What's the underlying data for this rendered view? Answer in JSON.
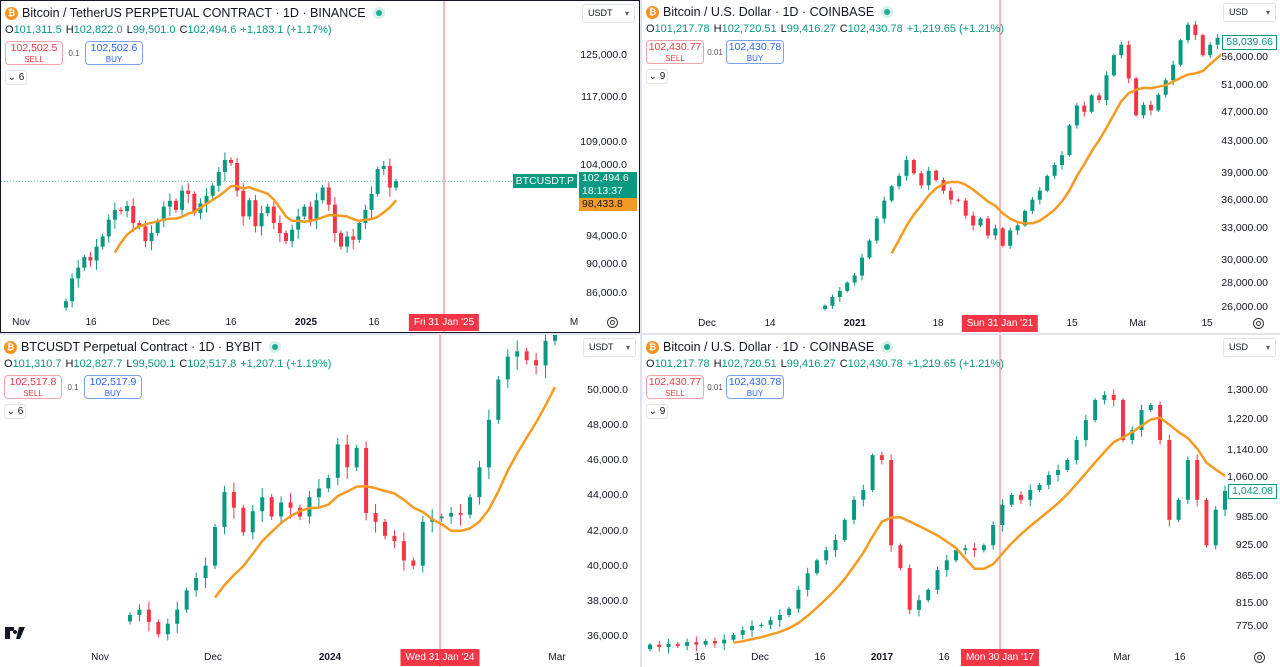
{
  "ohlc_labels": {
    "o": "O",
    "h": "H",
    "l": "L",
    "c": "C"
  },
  "colors": {
    "up": "#089981",
    "down": "#f23645",
    "moving_average": "#f59a23",
    "crosshair": "#f23645"
  },
  "panels": [
    {
      "title": "Bitcoin / TetherUS PERPETUAL CONTRACT · 1D · BINANCE",
      "coin_icon": "bitcoin-icon",
      "ohlc": {
        "o": "101,311.5",
        "h": "102,822.0",
        "l": "99,501.0",
        "c": "102,494.6",
        "change": "+1,183.1 (+1.17%)"
      },
      "sell": {
        "price": "102,502.5",
        "label": "SELL"
      },
      "spread": "0.1",
      "buy": {
        "price": "102,502.6",
        "label": "BUY"
      },
      "indicators_count": "6",
      "currency": "USDT",
      "crosshair_date": "Fri 31 Jan '25",
      "tags": {
        "symbol": "BTCUSDT.P",
        "price": "102,494.6",
        "countdown": "18:13:37",
        "ma": "98,433.8"
      }
    },
    {
      "title": "Bitcoin / U.S. Dollar · 1D · COINBASE",
      "coin_icon": "bitcoin-icon",
      "ohlc": {
        "o": "101,217.78",
        "h": "102,720.51",
        "l": "99,416.27",
        "c": "102,430.78",
        "change": "+1,219.65 (+1.21%)"
      },
      "sell": {
        "price": "102,430.77",
        "label": "SELL"
      },
      "spread": "0.01",
      "buy": {
        "price": "102,430.78",
        "label": "BUY"
      },
      "indicators_count": "9",
      "currency": "USD",
      "crosshair_date": "Sun 31 Jan '21",
      "tags": {
        "price": "58,039.66"
      }
    },
    {
      "title": "BTCUSDT Perpetual Contract · 1D · BYBIT",
      "coin_icon": "bitcoin-icon",
      "ohlc": {
        "o": "101,310.7",
        "h": "102,827.7",
        "l": "99,500.1",
        "c": "102,517.8",
        "change": "+1,207.1 (+1.19%)"
      },
      "sell": {
        "price": "102,517.8",
        "label": "SELL"
      },
      "spread": "0.1",
      "buy": {
        "price": "102,517.9",
        "label": "BUY"
      },
      "indicators_count": "6",
      "currency": "USDT",
      "crosshair_date": "Wed 31 Jan '24",
      "tags": {}
    },
    {
      "title": "Bitcoin / U.S. Dollar · 1D · COINBASE",
      "coin_icon": "bitcoin-icon",
      "ohlc": {
        "o": "101,217.78",
        "h": "102,720.51",
        "l": "99,416.27",
        "c": "102,430.78",
        "change": "+1,219.65 (+1.21%)"
      },
      "sell": {
        "price": "102,430.77",
        "label": "SELL"
      },
      "spread": "0.01",
      "buy": {
        "price": "102,430.78",
        "label": "BUY"
      },
      "indicators_count": "9",
      "currency": "USD",
      "crosshair_date": "Mon 30 Jan '17",
      "tags": {
        "price": "1,042.08"
      }
    }
  ],
  "chart_data": [
    {
      "type": "candlestick",
      "scale": "log",
      "moving_average": true,
      "closes": [
        84900,
        88000,
        89500,
        91000,
        90500,
        92500,
        94000,
        96500,
        98000,
        97800,
        98600,
        96000,
        95500,
        93300,
        94500,
        96300,
        98500,
        99400,
        98000,
        101000,
        100500,
        97500,
        99000,
        100200,
        101800,
        104000,
        106000,
        105500,
        101000,
        97000,
        99500,
        95500,
        97500,
        98500,
        96000,
        94500,
        93300,
        95000,
        97000,
        98500,
        96500,
        99500,
        101500,
        98800,
        94500,
        92500,
        94000,
        93500,
        96000,
        98000,
        100500,
        104500,
        105000,
        101500,
        102495
      ],
      "y_ticks": [
        "125,000.0",
        "117,000.0",
        "109,000.0",
        "104,000.0",
        "94,000.0",
        "90,000.0",
        "86,000.0"
      ],
      "x_ticks": [
        "Nov",
        "16",
        "Dec",
        "16",
        "2025",
        "16",
        "M"
      ]
    },
    {
      "type": "candlestick",
      "scale": "log",
      "moving_average": true,
      "closes": [
        26100,
        26800,
        27300,
        28000,
        28600,
        30200,
        31800,
        34000,
        35900,
        37500,
        38700,
        40600,
        39000,
        37600,
        39300,
        38200,
        37000,
        36000,
        35900,
        34300,
        33300,
        34000,
        32300,
        33000,
        31300,
        32800,
        33300,
        34800,
        36000,
        37000,
        38700,
        40000,
        41200,
        45100,
        47900,
        47000,
        49400,
        48700,
        52500,
        55800,
        57600,
        52000,
        46500,
        48000,
        47200,
        49500,
        51700,
        54200,
        58400,
        61200,
        59300,
        55800,
        57600,
        58800,
        58040
      ],
      "y_ticks": [
        "56,000.00",
        "51,000.00",
        "47,000.00",
        "43,000.00",
        "39,000.00",
        "36,000.00",
        "33,000.00",
        "30,000.00",
        "28,000.00",
        "26,000.00"
      ],
      "x_ticks": [
        "Dec",
        "14",
        "2021",
        "18",
        "15",
        "Mar",
        "15"
      ]
    },
    {
      "type": "candlestick",
      "scale": "linear",
      "moving_average": true,
      "closes": [
        37200,
        37500,
        36800,
        36100,
        36700,
        37500,
        38600,
        39300,
        40000,
        42200,
        44200,
        43300,
        41900,
        43100,
        43900,
        42800,
        43600,
        43300,
        42800,
        43900,
        44400,
        45000,
        46900,
        45600,
        46700,
        43000,
        42500,
        41700,
        41400,
        40300,
        40000,
        42500,
        42700,
        42800,
        43000,
        42900,
        43900,
        45600,
        48300,
        50600,
        51900,
        52200,
        51700,
        51400,
        52800,
        53300
      ],
      "y_ticks": [
        "50,000.0",
        "48,000.0",
        "46,000.0",
        "44,000.0",
        "42,000.0",
        "40,000.0",
        "38,000.0",
        "36,000.0"
      ],
      "x_ticks": [
        "Nov",
        "Dec",
        "2024",
        "Mar"
      ]
    },
    {
      "type": "candlestick",
      "scale": "log",
      "moving_average": true,
      "closes": [
        744,
        740,
        745,
        742,
        748,
        744,
        750,
        746,
        752,
        760,
        768,
        775,
        777,
        785,
        794,
        805,
        839,
        870,
        895,
        915,
        936,
        978,
        1022,
        1044,
        1127,
        1115,
        925,
        880,
        803,
        820,
        839,
        876,
        895,
        915,
        919,
        915,
        925,
        967,
        1011,
        1033,
        1022,
        1044,
        1056,
        1079,
        1091,
        1115,
        1165,
        1217,
        1272,
        1286,
        1272,
        1165,
        1191,
        1244,
        1258,
        1165,
        978,
        1022,
        1115,
        1022,
        925,
        1000,
        1042
      ],
      "y_ticks": [
        "1,300.00",
        "1,220.00",
        "1,140.00",
        "1,060.00",
        "985.00",
        "925.00",
        "865.00",
        "815.00",
        "775.00"
      ],
      "x_ticks": [
        "16",
        "Dec",
        "16",
        "2017",
        "16",
        "Mar",
        "16"
      ]
    }
  ]
}
